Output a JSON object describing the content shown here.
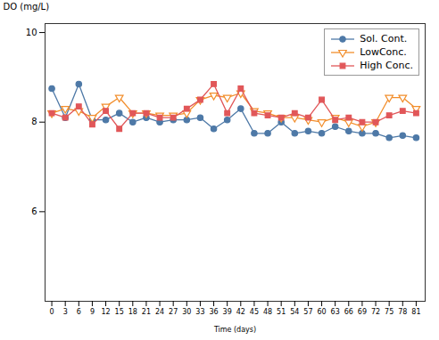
{
  "chart_data": {
    "type": "line",
    "xlabel": "Time (days)",
    "ylabel": "DO (mg/L)",
    "x": [
      0,
      3,
      6,
      9,
      12,
      15,
      18,
      21,
      24,
      27,
      30,
      33,
      36,
      39,
      42,
      45,
      48,
      51,
      54,
      57,
      60,
      63,
      66,
      69,
      72,
      75,
      78,
      81
    ],
    "xlim": [
      -1.5,
      83
    ],
    "xticks": [
      0,
      3,
      6,
      9,
      12,
      15,
      18,
      21,
      24,
      27,
      30,
      33,
      36,
      39,
      42,
      45,
      48,
      51,
      54,
      57,
      60,
      63,
      66,
      69,
      72,
      75,
      78,
      81
    ],
    "ylim": [
      4,
      10.2
    ],
    "yticks": [
      6,
      8,
      10
    ],
    "grid": false,
    "legend": "upper right",
    "series": [
      {
        "name": "Sol. Cont.",
        "marker": "circle",
        "values": [
          8.75,
          8.1,
          8.85,
          8.05,
          8.05,
          8.2,
          8.0,
          8.1,
          8.0,
          8.05,
          8.05,
          8.1,
          7.85,
          8.05,
          8.3,
          7.75,
          7.75,
          8.0,
          7.75,
          7.8,
          7.75,
          7.9,
          7.8,
          7.75,
          7.75,
          7.65,
          7.7,
          7.65
        ]
      },
      {
        "name": "LowConc.",
        "marker": "triangle_down_open",
        "values": [
          8.2,
          8.3,
          8.25,
          8.1,
          8.35,
          8.55,
          8.2,
          8.2,
          8.15,
          8.15,
          8.2,
          8.5,
          8.6,
          8.55,
          8.65,
          8.25,
          8.2,
          8.1,
          8.1,
          8.05,
          8.0,
          8.1,
          8.0,
          7.9,
          8.0,
          8.55,
          8.55,
          8.3
        ]
      },
      {
        "name": "High Conc.",
        "marker": "square",
        "values": [
          8.2,
          8.1,
          8.35,
          7.95,
          8.25,
          7.85,
          8.2,
          8.2,
          8.1,
          8.1,
          8.3,
          8.5,
          8.85,
          8.2,
          8.75,
          8.2,
          8.15,
          8.1,
          8.2,
          8.1,
          8.5,
          8.05,
          8.1,
          8.0,
          8.0,
          8.15,
          8.25,
          8.2
        ]
      }
    ]
  }
}
